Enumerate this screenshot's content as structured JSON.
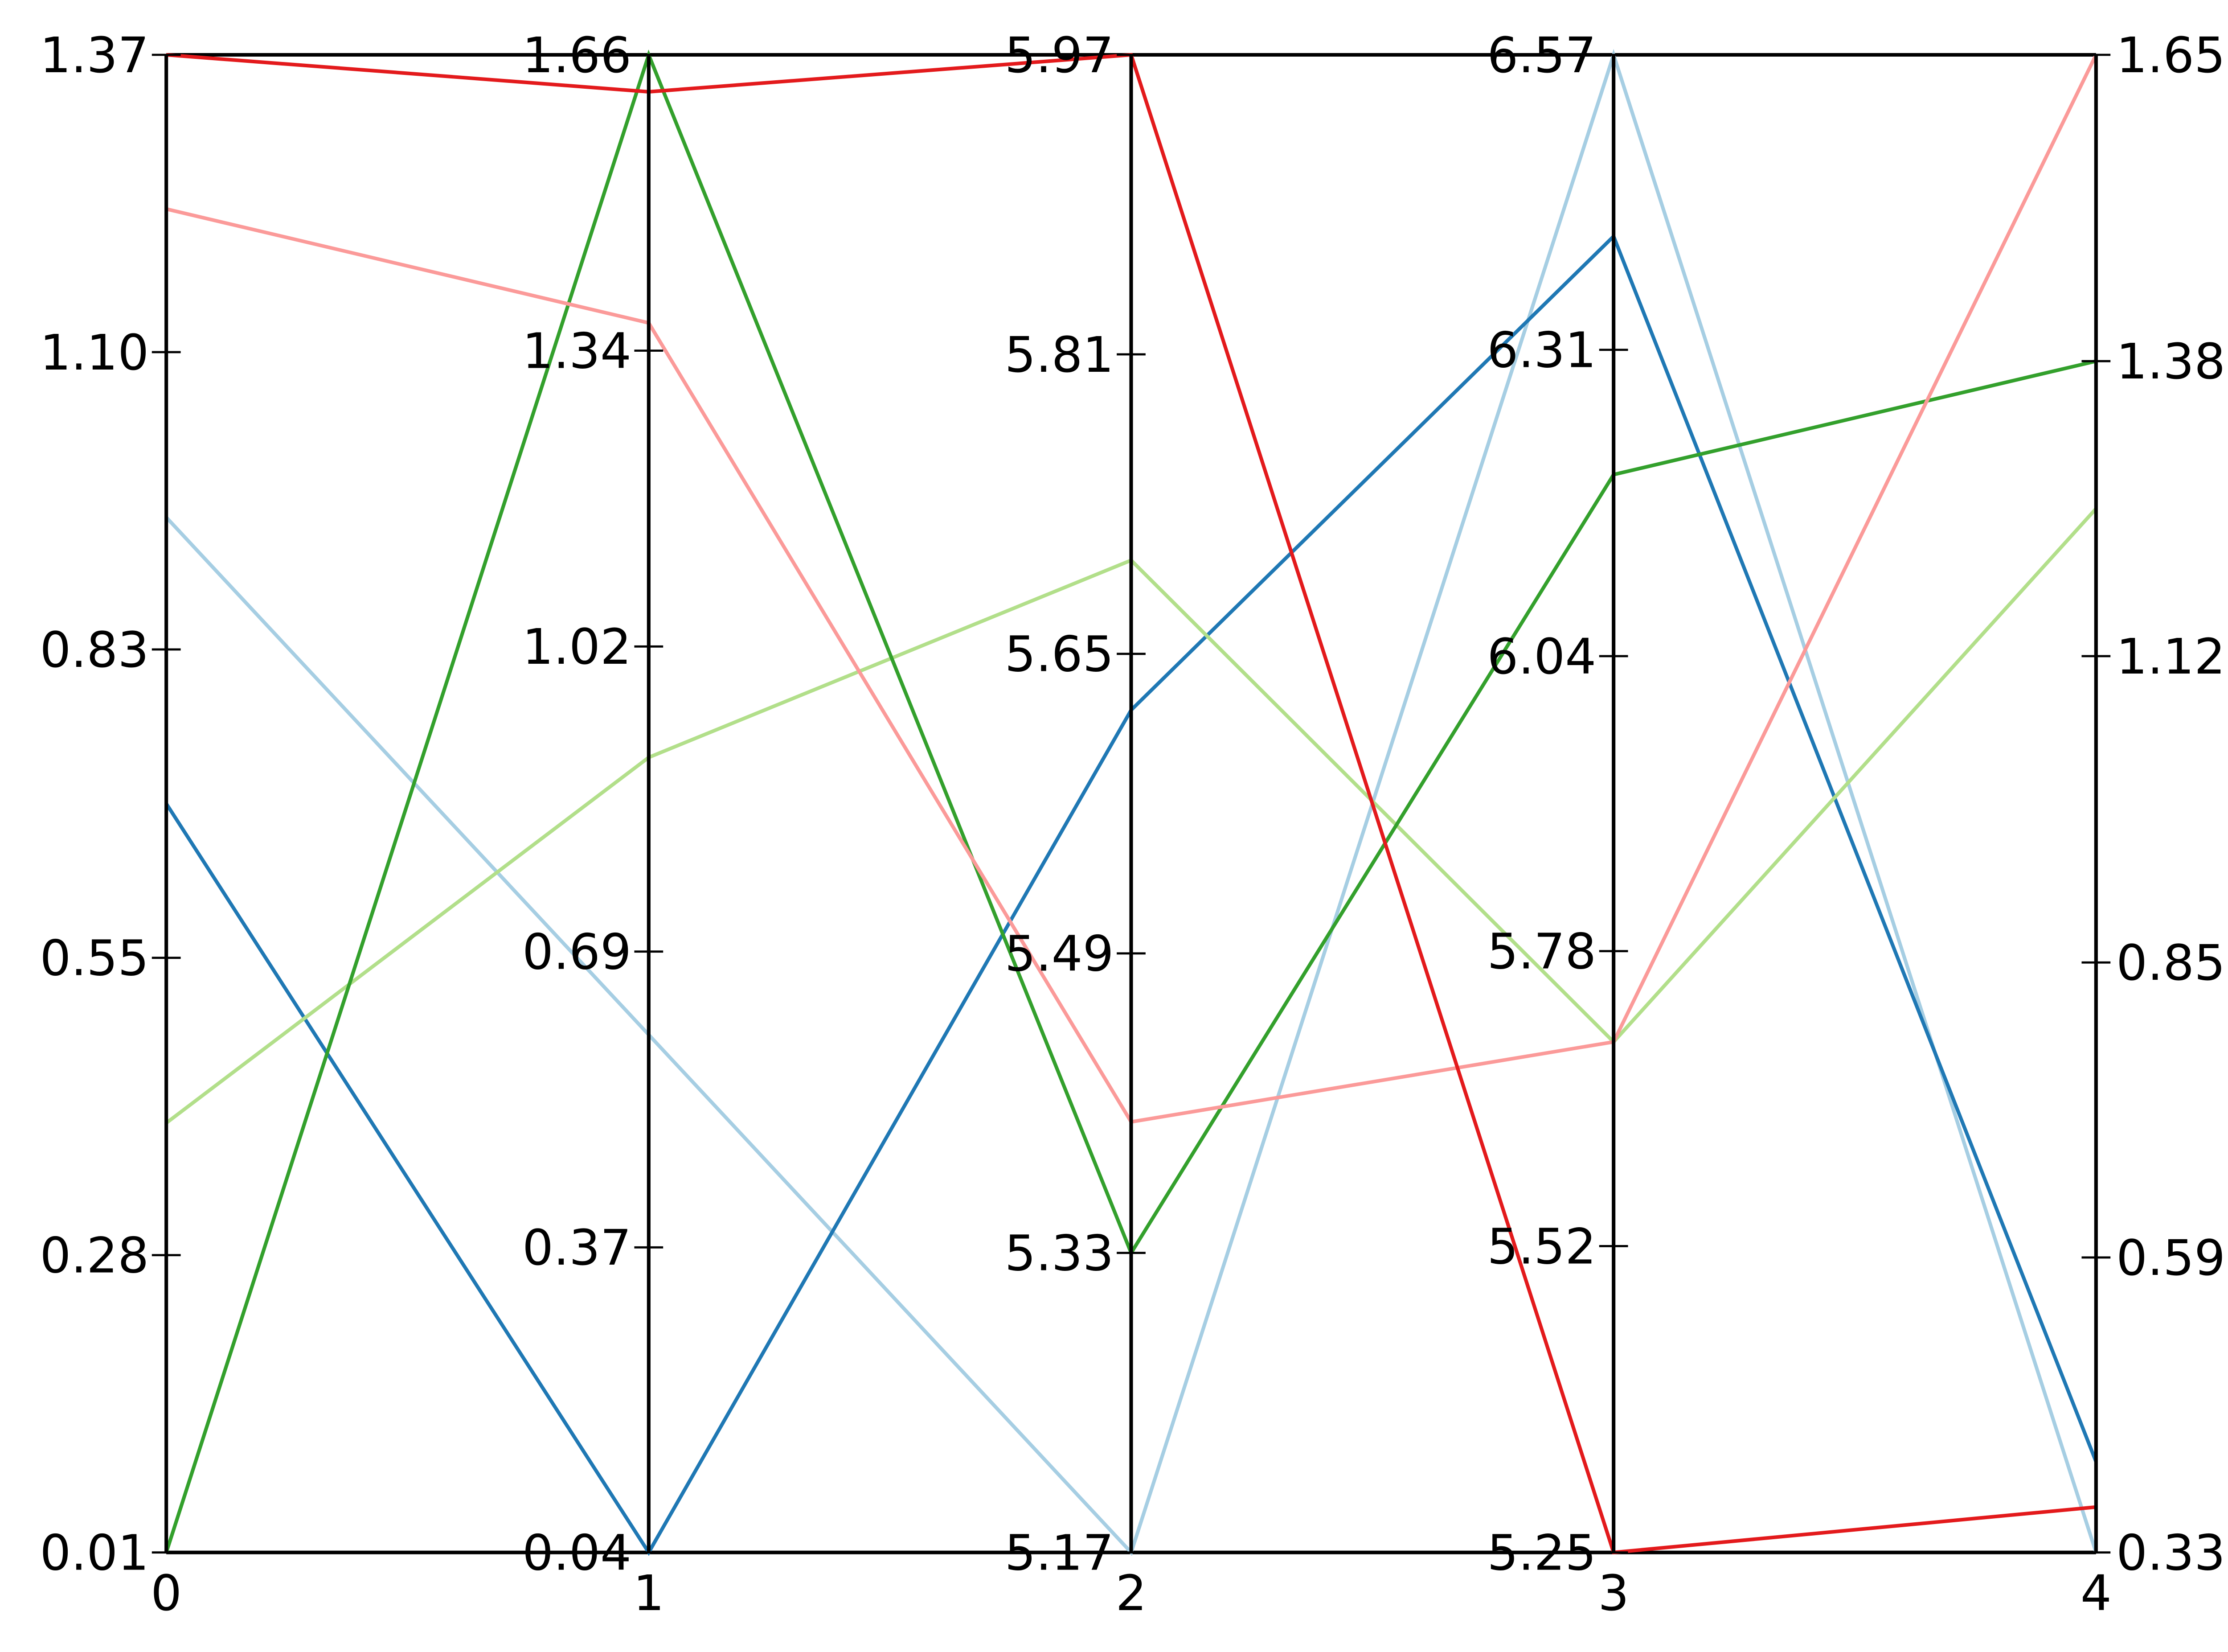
{
  "chart_data": {
    "type": "parallel",
    "axes": [
      {
        "label": "0",
        "lim": [
          0.01,
          1.37
        ],
        "ticks": [
          0.01,
          0.28,
          0.55,
          0.83,
          {
            "value": 1.1,
            "label": "1.10"
          },
          1.37
        ]
      },
      {
        "label": "1",
        "lim": [
          0.04,
          1.66
        ],
        "ticks": [
          0.04,
          0.37,
          0.69,
          1.02,
          1.34,
          1.66
        ]
      },
      {
        "label": "2",
        "lim": [
          5.17,
          5.97
        ],
        "ticks": [
          5.17,
          5.33,
          5.49,
          5.65,
          5.81,
          5.97
        ]
      },
      {
        "label": "3",
        "lim": [
          5.25,
          6.57
        ],
        "ticks": [
          5.25,
          5.52,
          5.78,
          6.04,
          6.31,
          6.57
        ]
      },
      {
        "label": "4",
        "lim": [
          0.33,
          1.65
        ],
        "ticks": [
          0.33,
          0.59,
          0.85,
          1.12,
          1.38,
          1.65
        ]
      }
    ],
    "series": [
      {
        "color": "#a6cee3",
        "values": [
          0.95,
          0.6,
          5.17,
          6.57,
          0.33
        ]
      },
      {
        "color": "#1f78b4",
        "values": [
          0.69,
          0.04,
          5.62,
          6.41,
          0.41
        ]
      },
      {
        "color": "#b2df8a",
        "values": [
          0.4,
          0.9,
          5.7,
          5.7,
          1.25
        ]
      },
      {
        "color": "#33a02c",
        "values": [
          0.01,
          1.66,
          5.33,
          6.2,
          1.38
        ]
      },
      {
        "color": "#fb9a99",
        "values": [
          1.23,
          1.37,
          5.4,
          5.7,
          1.65
        ]
      },
      {
        "color": "#e31a1c",
        "values": [
          1.37,
          1.62,
          5.97,
          5.25,
          0.37
        ]
      }
    ]
  }
}
